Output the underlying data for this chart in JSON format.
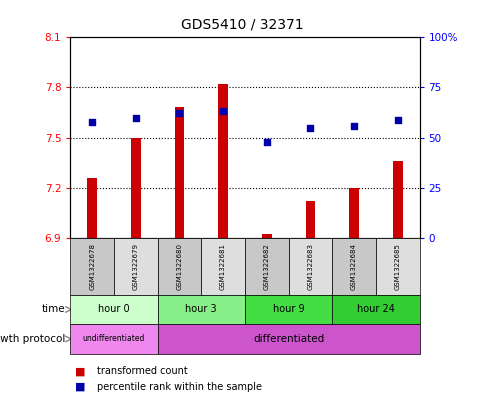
{
  "title": "GDS5410 / 32371",
  "samples": [
    "GSM1322678",
    "GSM1322679",
    "GSM1322680",
    "GSM1322681",
    "GSM1322682",
    "GSM1322683",
    "GSM1322684",
    "GSM1322685"
  ],
  "transformed_count": [
    7.26,
    7.5,
    7.68,
    7.82,
    6.92,
    7.12,
    7.2,
    7.36
  ],
  "percentile_rank": [
    58,
    60,
    62,
    63,
    48,
    55,
    56,
    59
  ],
  "ylim_left": [
    6.9,
    8.1
  ],
  "ylim_right": [
    0,
    100
  ],
  "yticks_left": [
    6.9,
    7.2,
    7.5,
    7.8,
    8.1
  ],
  "yticks_right": [
    0,
    25,
    50,
    75,
    100
  ],
  "ytick_labels_left": [
    "6.9",
    "7.2",
    "7.5",
    "7.8",
    "8.1"
  ],
  "ytick_labels_right": [
    "0",
    "25",
    "50",
    "75",
    "100%"
  ],
  "bar_color": "#cc0000",
  "dot_color": "#0000aa",
  "bar_bottom": 6.9,
  "time_groups": [
    {
      "label": "hour 0",
      "start": 0,
      "end": 2,
      "color": "#ccffcc"
    },
    {
      "label": "hour 3",
      "start": 2,
      "end": 4,
      "color": "#88ee88"
    },
    {
      "label": "hour 9",
      "start": 4,
      "end": 6,
      "color": "#44dd44"
    },
    {
      "label": "hour 24",
      "start": 6,
      "end": 8,
      "color": "#33cc33"
    }
  ],
  "protocol_groups": [
    {
      "label": "undifferentiated",
      "start": 0,
      "end": 2,
      "color": "#ee88ee"
    },
    {
      "label": "differentiated",
      "start": 2,
      "end": 8,
      "color": "#cc55cc"
    }
  ],
  "legend_bar_label": "transformed count",
  "legend_dot_label": "percentile rank within the sample",
  "time_label": "time",
  "protocol_label": "growth protocol"
}
